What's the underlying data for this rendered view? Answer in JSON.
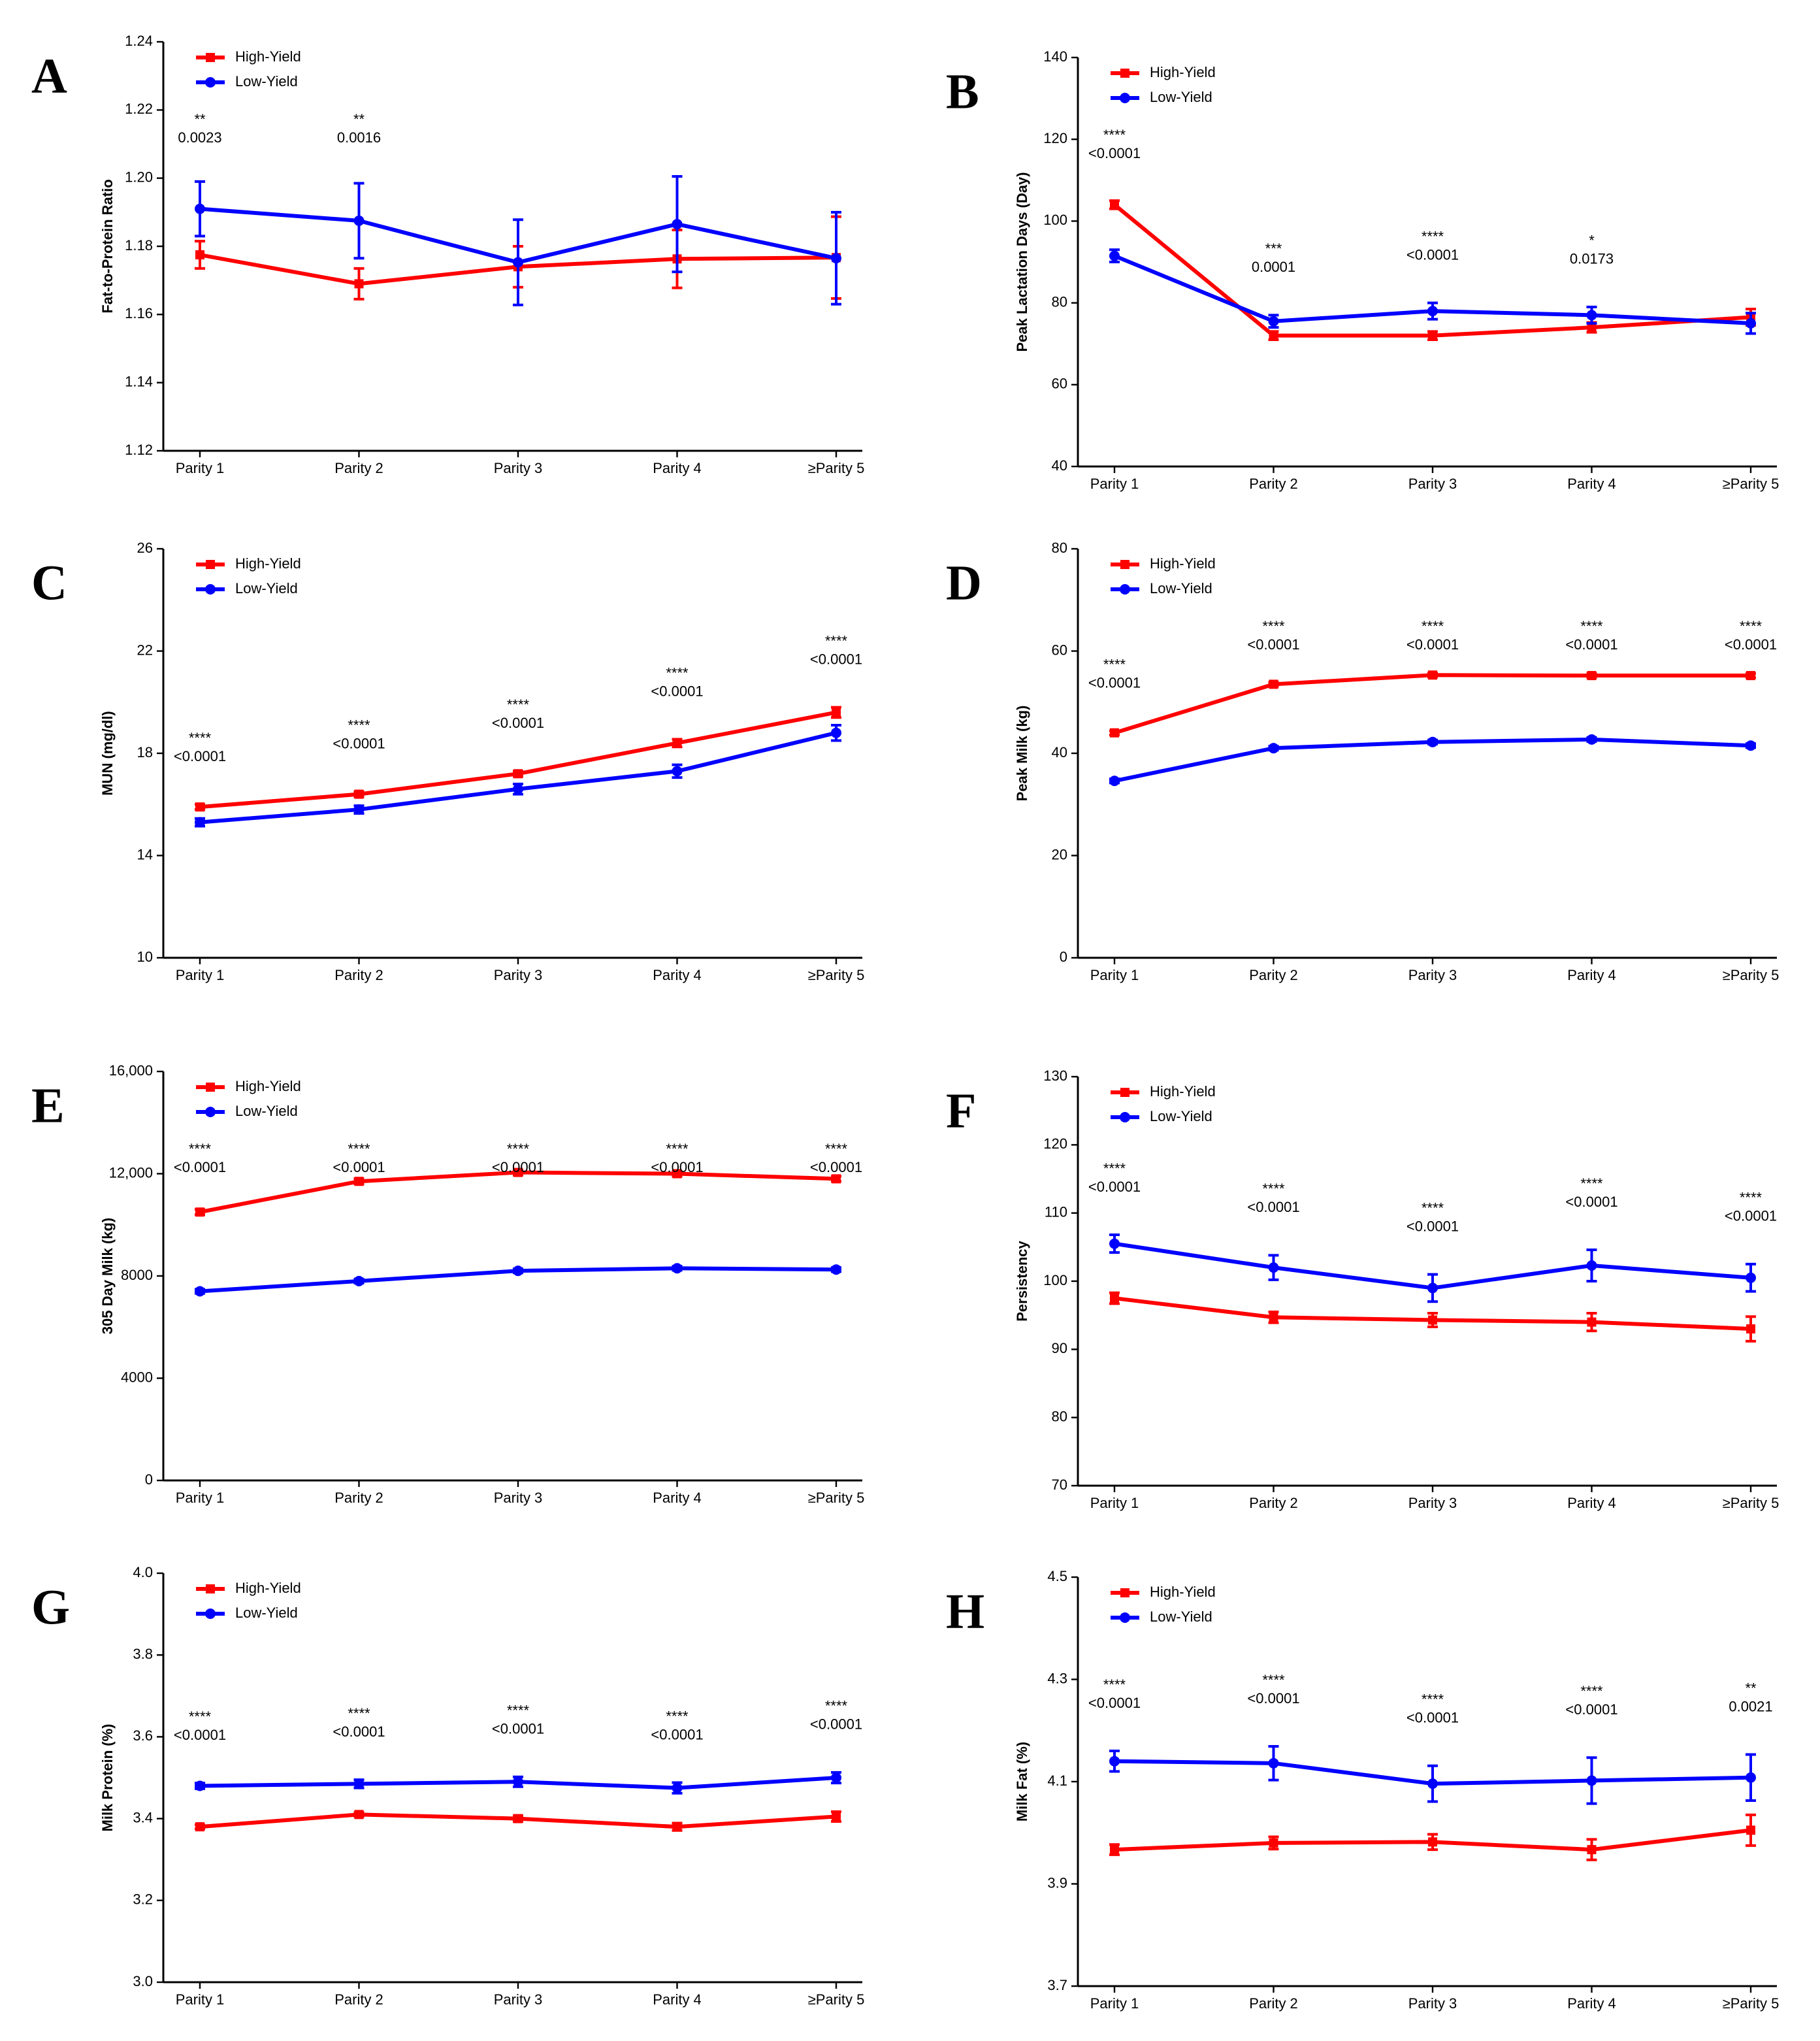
{
  "chart_data": [
    {
      "type": "line",
      "panel": "A",
      "ylabel": "Fat-to-Protein Ratio",
      "categories": [
        "Parity 1",
        "Parity 2",
        "Parity 3",
        "Parity 4",
        "≥Parity 5"
      ],
      "series": [
        {
          "name": "High-Yield",
          "color": "#ff0000",
          "marker": "square",
          "values": [
            1.1775,
            1.169,
            1.174,
            1.1763,
            1.1767
          ],
          "errors": [
            0.004,
            0.0045,
            0.006,
            0.0085,
            0.012
          ]
        },
        {
          "name": "Low-Yield",
          "color": "#0000ff",
          "marker": "circle",
          "values": [
            1.191,
            1.1875,
            1.1753,
            1.1865,
            1.1765
          ],
          "errors": [
            0.008,
            0.011,
            0.0125,
            0.014,
            0.0135
          ]
        }
      ],
      "ylim": [
        1.12,
        1.24
      ],
      "yticks": [
        1.12,
        1.14,
        1.16,
        1.18,
        {
          "value": 1.2,
          "label": "1.20"
        },
        1.22,
        1.24
      ],
      "annotations": [
        {
          "stars": "**",
          "p": "0.0023"
        },
        {
          "stars": "**",
          "p": "0.0016"
        },
        null,
        null,
        null
      ]
    },
    {
      "type": "line",
      "panel": "B",
      "ylabel": "Peak Lactation Days (Day)",
      "categories": [
        "Parity 1",
        "Parity 2",
        "Parity 3",
        "Parity 4",
        "≥Parity 5"
      ],
      "series": [
        {
          "name": "High-Yield",
          "color": "#ff0000",
          "marker": "square",
          "values": [
            104,
            72,
            72,
            74,
            76.5
          ],
          "errors": [
            1,
            1,
            1,
            1.2,
            2
          ]
        },
        {
          "name": "Low-Yield",
          "color": "#0000ff",
          "marker": "circle",
          "values": [
            91.5,
            75.5,
            78,
            77,
            75
          ],
          "errors": [
            1.5,
            1.5,
            2,
            2,
            2.5
          ]
        }
      ],
      "ylim": [
        40,
        140
      ],
      "yticks": [
        40,
        60,
        80,
        100,
        120,
        140
      ],
      "annotations": [
        {
          "stars": "****",
          "p": "<0.0001"
        },
        {
          "stars": "***",
          "p": "0.0001"
        },
        {
          "stars": "****",
          "p": "<0.0001"
        },
        {
          "stars": "*",
          "p": "0.0173"
        },
        null
      ]
    },
    {
      "type": "line",
      "panel": "C",
      "ylabel": "MUN (mg/dl)",
      "categories": [
        "Parity 1",
        "Parity 2",
        "Parity 3",
        "Parity 4",
        "≥Parity 5"
      ],
      "series": [
        {
          "name": "High-Yield",
          "color": "#ff0000",
          "marker": "square",
          "values": [
            15.9,
            16.4,
            17.2,
            18.4,
            19.6
          ],
          "errors": [
            0.1,
            0.1,
            0.1,
            0.15,
            0.2
          ]
        },
        {
          "name": "Low-Yield",
          "color": "#0000ff",
          "marker": "circle",
          "values": [
            15.3,
            15.8,
            16.6,
            17.3,
            18.8
          ],
          "errors": [
            0.15,
            0.15,
            0.2,
            0.25,
            0.3
          ]
        }
      ],
      "ylim": [
        10,
        26
      ],
      "yticks": [
        10,
        14,
        18,
        22,
        26
      ],
      "annotations": [
        {
          "stars": "****",
          "p": "<0.0001"
        },
        {
          "stars": "****",
          "p": "<0.0001"
        },
        {
          "stars": "****",
          "p": "<0.0001"
        },
        {
          "stars": "****",
          "p": "<0.0001"
        },
        {
          "stars": "****",
          "p": "<0.0001"
        }
      ]
    },
    {
      "type": "line",
      "panel": "D",
      "ylabel": "Peak Milk (kg)",
      "categories": [
        "Parity 1",
        "Parity 2",
        "Parity 3",
        "Parity 4",
        "≥Parity 5"
      ],
      "series": [
        {
          "name": "High-Yield",
          "color": "#ff0000",
          "marker": "square",
          "values": [
            44,
            53.5,
            55.3,
            55.2,
            55.2
          ],
          "errors": [
            0.4,
            0.4,
            0.4,
            0.4,
            0.4
          ]
        },
        {
          "name": "Low-Yield",
          "color": "#0000ff",
          "marker": "circle",
          "values": [
            34.6,
            41,
            42.2,
            42.7,
            41.5
          ],
          "errors": [
            0.4,
            0.4,
            0.4,
            0.4,
            0.4
          ]
        }
      ],
      "ylim": [
        0,
        80
      ],
      "yticks": [
        0,
        20,
        40,
        60,
        80
      ],
      "annotations": [
        {
          "stars": "****",
          "p": "<0.0001"
        },
        {
          "stars": "****",
          "p": "<0.0001"
        },
        {
          "stars": "****",
          "p": "<0.0001"
        },
        {
          "stars": "****",
          "p": "<0.0001"
        },
        {
          "stars": "****",
          "p": "<0.0001"
        }
      ]
    },
    {
      "type": "line",
      "panel": "E",
      "ylabel": "305 Day Milk (kg)",
      "categories": [
        "Parity 1",
        "Parity 2",
        "Parity 3",
        "Parity 4",
        "≥Parity 5"
      ],
      "series": [
        {
          "name": "High-Yield",
          "color": "#ff0000",
          "marker": "square",
          "values": [
            10500,
            11700,
            12050,
            12000,
            11800
          ],
          "errors": [
            100,
            100,
            100,
            100,
            100
          ]
        },
        {
          "name": "Low-Yield",
          "color": "#0000ff",
          "marker": "circle",
          "values": [
            7400,
            7800,
            8200,
            8300,
            8250
          ],
          "errors": [
            80,
            80,
            80,
            80,
            80
          ]
        }
      ],
      "ylim": [
        0,
        16000
      ],
      "yticks": [
        0,
        4000,
        8000,
        {
          "value": 12000,
          "label": "12,000"
        },
        {
          "value": 16000,
          "label": "16,000"
        }
      ],
      "annotations": [
        {
          "stars": "****",
          "p": "<0.0001"
        },
        {
          "stars": "****",
          "p": "<0.0001"
        },
        {
          "stars": "****",
          "p": "<0.0001"
        },
        {
          "stars": "****",
          "p": "<0.0001"
        },
        {
          "stars": "****",
          "p": "<0.0001"
        }
      ]
    },
    {
      "type": "line",
      "panel": "F",
      "ylabel": "Persistency",
      "categories": [
        "Parity 1",
        "Parity 2",
        "Parity 3",
        "Parity 4",
        "≥Parity 5"
      ],
      "series": [
        {
          "name": "High-Yield",
          "color": "#ff0000",
          "marker": "square",
          "values": [
            97.5,
            94.7,
            94.3,
            94,
            93
          ],
          "errors": [
            0.8,
            0.8,
            1,
            1.3,
            1.8
          ]
        },
        {
          "name": "Low-Yield",
          "color": "#0000ff",
          "marker": "circle",
          "values": [
            105.5,
            102,
            99,
            102.3,
            100.5
          ],
          "errors": [
            1.3,
            1.8,
            2,
            2.3,
            2
          ]
        }
      ],
      "ylim": [
        70,
        130
      ],
      "yticks": [
        70,
        80,
        90,
        100,
        110,
        120,
        130
      ],
      "annotations": [
        {
          "stars": "****",
          "p": "<0.0001"
        },
        {
          "stars": "****",
          "p": "<0.0001"
        },
        {
          "stars": "****",
          "p": "<0.0001"
        },
        {
          "stars": "****",
          "p": "<0.0001"
        },
        {
          "stars": "****",
          "p": "<0.0001"
        }
      ]
    },
    {
      "type": "line",
      "panel": "G",
      "ylabel": "Milk Protein (%)",
      "categories": [
        "Parity 1",
        "Parity 2",
        "Parity 3",
        "Parity 4",
        "≥Parity 5"
      ],
      "series": [
        {
          "name": "High-Yield",
          "color": "#ff0000",
          "marker": "square",
          "values": [
            3.38,
            3.41,
            3.4,
            3.38,
            3.405
          ],
          "errors": [
            0.005,
            0.005,
            0.007,
            0.009,
            0.012
          ]
        },
        {
          "name": "Low-Yield",
          "color": "#0000ff",
          "marker": "circle",
          "values": [
            3.48,
            3.485,
            3.49,
            3.475,
            3.5
          ],
          "errors": [
            0.007,
            0.01,
            0.012,
            0.013,
            0.013
          ]
        }
      ],
      "ylim": [
        3.0,
        4.0
      ],
      "yticks": [
        {
          "value": 3.0,
          "label": "3.0"
        },
        3.2,
        3.4,
        3.6,
        3.8,
        {
          "value": 4.0,
          "label": "4.0"
        }
      ],
      "annotations": [
        {
          "stars": "****",
          "p": "<0.0001"
        },
        {
          "stars": "****",
          "p": "<0.0001"
        },
        {
          "stars": "****",
          "p": "<0.0001"
        },
        {
          "stars": "****",
          "p": "<0.0001"
        },
        {
          "stars": "****",
          "p": "<0.0001"
        }
      ]
    },
    {
      "type": "line",
      "panel": "H",
      "ylabel": "Milk Fat (%)",
      "categories": [
        "Parity 1",
        "Parity 2",
        "Parity 3",
        "Parity 4",
        "≥Parity 5"
      ],
      "series": [
        {
          "name": "High-Yield",
          "color": "#ff0000",
          "marker": "square",
          "values": [
            3.967,
            3.98,
            3.982,
            3.967,
            4.005
          ],
          "errors": [
            0.01,
            0.012,
            0.015,
            0.02,
            0.03
          ]
        },
        {
          "name": "Low-Yield",
          "color": "#0000ff",
          "marker": "circle",
          "values": [
            4.14,
            4.136,
            4.096,
            4.102,
            4.108
          ],
          "errors": [
            0.02,
            0.033,
            0.035,
            0.045,
            0.045
          ]
        }
      ],
      "ylim": [
        3.7,
        4.5
      ],
      "yticks": [
        3.7,
        3.9,
        4.1,
        4.3,
        4.5
      ],
      "annotations": [
        {
          "stars": "****",
          "p": "<0.0001"
        },
        {
          "stars": "****",
          "p": "<0.0001"
        },
        {
          "stars": "****",
          "p": "<0.0001"
        },
        {
          "stars": "****",
          "p": "<0.0001"
        },
        {
          "stars": "**",
          "p": "0.0021"
        }
      ]
    }
  ]
}
